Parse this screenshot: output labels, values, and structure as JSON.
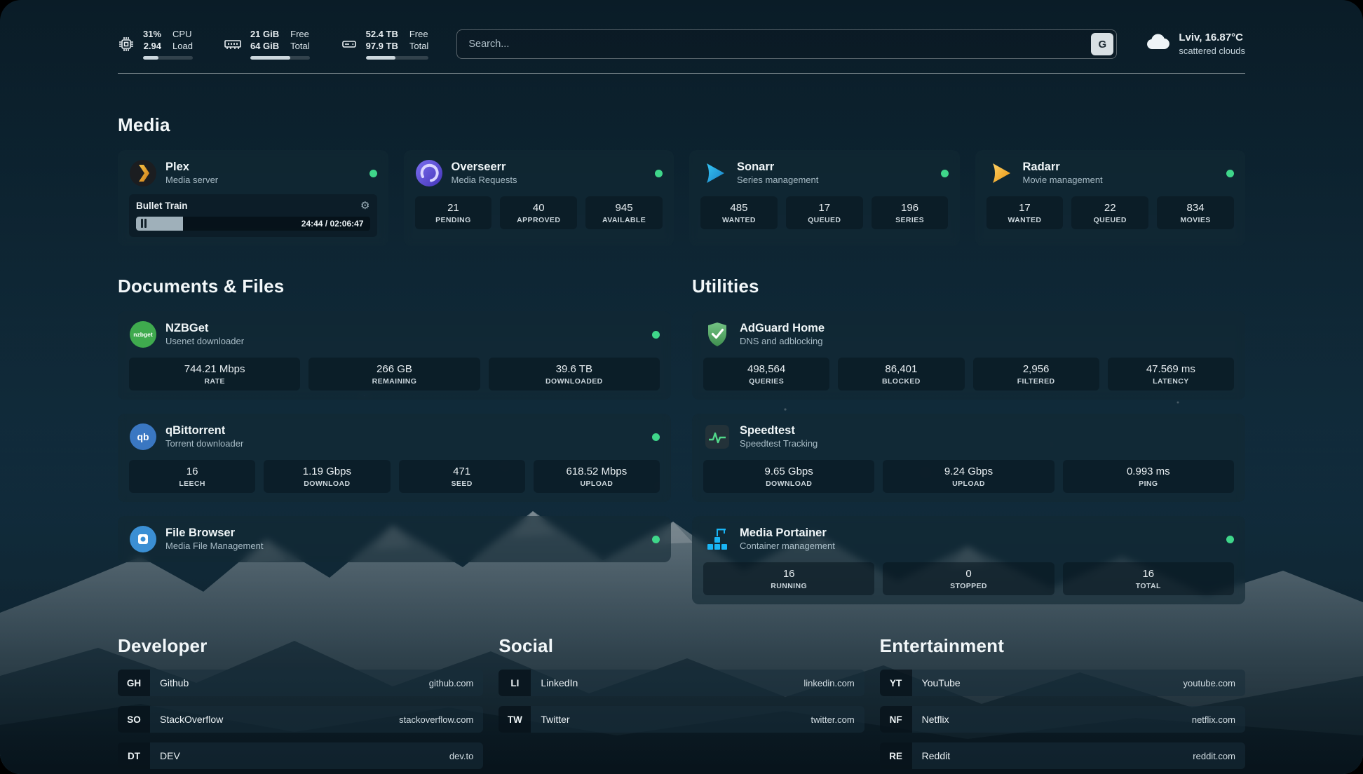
{
  "topbar": {
    "cpu": {
      "value": "31%",
      "load": "2.94",
      "label_top": "CPU",
      "label_bottom": "Load",
      "percent": 31
    },
    "memory": {
      "free": "21 GiB",
      "total": "64 GiB",
      "label_top": "Free",
      "label_bottom": "Total",
      "percent": 67
    },
    "disk": {
      "free": "52.4 TB",
      "total": "97.9 TB",
      "label_top": "Free",
      "label_bottom": "Total",
      "percent": 47
    },
    "search": {
      "placeholder": "Search...",
      "button_label": "G"
    },
    "weather": {
      "location": "Lviv, 16.87°C",
      "condition": "scattered clouds"
    }
  },
  "media": {
    "title": "Media",
    "plex": {
      "name": "Plex",
      "subtitle": "Media server",
      "now_playing": "Bullet Train",
      "time": "24:44 / 02:06:47",
      "progress_percent": 20
    },
    "overseerr": {
      "name": "Overseerr",
      "subtitle": "Media Requests",
      "stats": [
        {
          "value": "21",
          "label": "PENDING"
        },
        {
          "value": "40",
          "label": "APPROVED"
        },
        {
          "value": "945",
          "label": "AVAILABLE"
        }
      ]
    },
    "sonarr": {
      "name": "Sonarr",
      "subtitle": "Series management",
      "stats": [
        {
          "value": "485",
          "label": "WANTED"
        },
        {
          "value": "17",
          "label": "QUEUED"
        },
        {
          "value": "196",
          "label": "SERIES"
        }
      ]
    },
    "radarr": {
      "name": "Radarr",
      "subtitle": "Movie management",
      "stats": [
        {
          "value": "17",
          "label": "WANTED"
        },
        {
          "value": "22",
          "label": "QUEUED"
        },
        {
          "value": "834",
          "label": "MOVIES"
        }
      ]
    }
  },
  "documents": {
    "title": "Documents & Files",
    "nzbget": {
      "name": "NZBGet",
      "subtitle": "Usenet downloader",
      "stats": [
        {
          "value": "744.21 Mbps",
          "label": "RATE"
        },
        {
          "value": "266 GB",
          "label": "REMAINING"
        },
        {
          "value": "39.6 TB",
          "label": "DOWNLOADED"
        }
      ]
    },
    "qbittorrent": {
      "name": "qBittorrent",
      "subtitle": "Torrent downloader",
      "stats": [
        {
          "value": "16",
          "label": "LEECH"
        },
        {
          "value": "1.19 Gbps",
          "label": "DOWNLOAD"
        },
        {
          "value": "471",
          "label": "SEED"
        },
        {
          "value": "618.52 Mbps",
          "label": "UPLOAD"
        }
      ]
    },
    "filebrowser": {
      "name": "File Browser",
      "subtitle": "Media File Management"
    }
  },
  "utilities": {
    "title": "Utilities",
    "adguard": {
      "name": "AdGuard Home",
      "subtitle": "DNS and adblocking",
      "stats": [
        {
          "value": "498,564",
          "label": "QUERIES"
        },
        {
          "value": "86,401",
          "label": "BLOCKED"
        },
        {
          "value": "2,956",
          "label": "FILTERED"
        },
        {
          "value": "47.569 ms",
          "label": "LATENCY"
        }
      ]
    },
    "speedtest": {
      "name": "Speedtest",
      "subtitle": "Speedtest Tracking",
      "stats": [
        {
          "value": "9.65 Gbps",
          "label": "DOWNLOAD"
        },
        {
          "value": "9.24 Gbps",
          "label": "UPLOAD"
        },
        {
          "value": "0.993 ms",
          "label": "PING"
        }
      ]
    },
    "portainer": {
      "name": "Media Portainer",
      "subtitle": "Container management",
      "stats": [
        {
          "value": "16",
          "label": "RUNNING"
        },
        {
          "value": "0",
          "label": "STOPPED"
        },
        {
          "value": "16",
          "label": "TOTAL"
        }
      ]
    }
  },
  "bookmarks": [
    {
      "title": "Developer",
      "items": [
        {
          "abbr": "GH",
          "name": "Github",
          "url": "github.com"
        },
        {
          "abbr": "SO",
          "name": "StackOverflow",
          "url": "stackoverflow.com"
        },
        {
          "abbr": "DT",
          "name": "DEV",
          "url": "dev.to"
        }
      ]
    },
    {
      "title": "Social",
      "items": [
        {
          "abbr": "LI",
          "name": "LinkedIn",
          "url": "linkedin.com"
        },
        {
          "abbr": "TW",
          "name": "Twitter",
          "url": "twitter.com"
        }
      ]
    },
    {
      "title": "Entertainment",
      "items": [
        {
          "abbr": "YT",
          "name": "YouTube",
          "url": "youtube.com"
        },
        {
          "abbr": "NF",
          "name": "Netflix",
          "url": "netflix.com"
        },
        {
          "abbr": "RE",
          "name": "Reddit",
          "url": "reddit.com"
        }
      ]
    }
  ]
}
